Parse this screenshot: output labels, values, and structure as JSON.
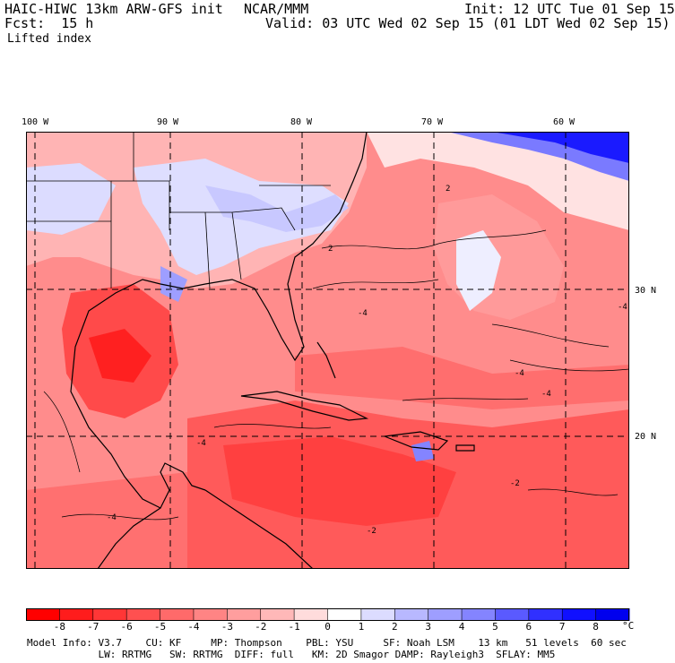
{
  "header": {
    "title_left": "HAIC-HIWC 13km ARW-GFS init",
    "title_center": "NCAR/MMM",
    "init": "Init: 12 UTC Tue 01 Sep 15",
    "fcst": "Fcst:  15 h",
    "valid": "Valid: 03 UTC Wed 02 Sep 15 (01 LDT Wed 02 Sep 15)",
    "field": "Lifted index"
  },
  "map": {
    "lon_labels": [
      "100 W",
      "90 W",
      "80 W",
      "70 W",
      "60 W"
    ],
    "lat_labels": [
      "30 N",
      "20 N"
    ],
    "contour_labels": [
      "2",
      "-4",
      "-4",
      "-4",
      "-4",
      "-4",
      "-4",
      "-2",
      "2",
      "-2"
    ],
    "colors": {
      "strong_neg": "#ff1a1a",
      "mid_neg": "#ff5c5c",
      "weak_neg": "#ff9c9c",
      "slight_neg": "#ffcccc",
      "neutral": "#ffffff",
      "slight_pos": "#c8c8ff",
      "strong_pos": "#0000ee"
    }
  },
  "colorbar": {
    "ticks": [
      "-8",
      "-7",
      "-6",
      "-5",
      "-4",
      "-3",
      "-2",
      "-1",
      "0",
      "1",
      "2",
      "3",
      "4",
      "5",
      "6",
      "7",
      "8"
    ],
    "unit": "°C",
    "colors": [
      "#ff0000",
      "#ff1c1c",
      "#ff3636",
      "#ff5050",
      "#ff6a6a",
      "#ff8484",
      "#ff9e9e",
      "#ffb8b8",
      "#ffdcdc",
      "#ffffff",
      "#dcdcff",
      "#b8b8ff",
      "#9e9eff",
      "#8484ff",
      "#5a5aff",
      "#3030ff",
      "#1010ff",
      "#0000ee"
    ]
  },
  "footer": {
    "line1": "Model Info: V3.7    CU: KF     MP: Thompson    PBL: YSU     SF: Noah LSM    13 km   51 levels  60 sec",
    "line2": "            LW: RRTMG   SW: RRTMG  DIFF: full   KM: 2D Smagor DAMP: Rayleigh3  SFLAY: MM5"
  }
}
